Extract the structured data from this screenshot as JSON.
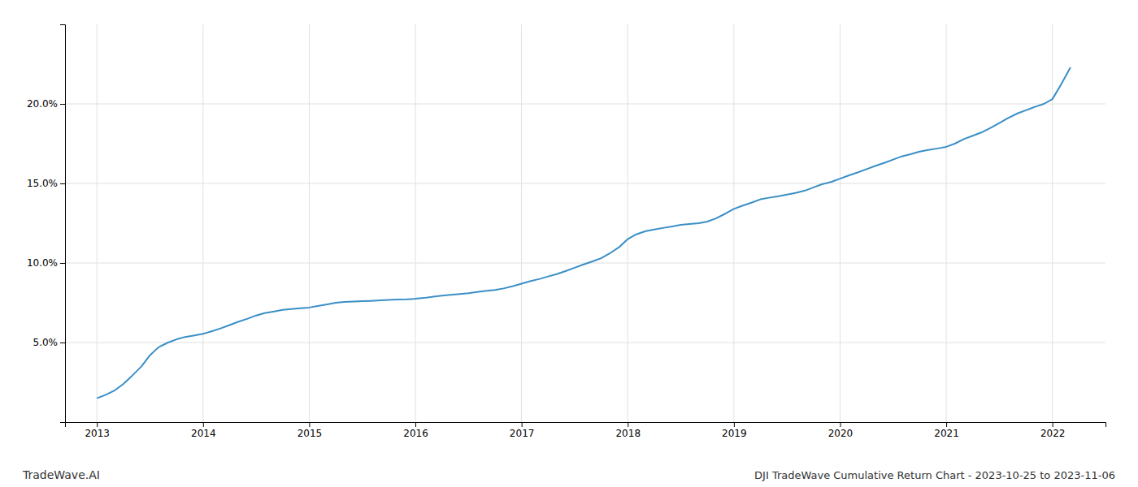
{
  "chart_data": {
    "type": "line",
    "title": "DJI TradeWave Cumulative Return Chart - 2023-10-25 to 2023-11-06",
    "annotations": [
      "TradeWave.AI"
    ],
    "color": "#3a8fc7",
    "x": [
      2013.0,
      2013.08,
      2013.17,
      2013.25,
      2013.33,
      2013.42,
      2013.5,
      2013.58,
      2013.67,
      2013.75,
      2013.83,
      2013.92,
      2014.0,
      2014.08,
      2014.17,
      2014.25,
      2014.33,
      2014.42,
      2014.5,
      2014.58,
      2014.67,
      2014.75,
      2014.83,
      2014.92,
      2015.0,
      2015.08,
      2015.17,
      2015.25,
      2015.33,
      2015.42,
      2015.5,
      2015.58,
      2015.67,
      2015.75,
      2015.83,
      2015.92,
      2016.0,
      2016.08,
      2016.17,
      2016.25,
      2016.33,
      2016.42,
      2016.5,
      2016.58,
      2016.67,
      2016.75,
      2016.83,
      2016.92,
      2017.0,
      2017.08,
      2017.17,
      2017.25,
      2017.33,
      2017.42,
      2017.5,
      2017.58,
      2017.67,
      2017.75,
      2017.83,
      2017.92,
      2018.0,
      2018.08,
      2018.17,
      2018.25,
      2018.33,
      2018.42,
      2018.5,
      2018.58,
      2018.67,
      2018.75,
      2018.83,
      2018.92,
      2019.0,
      2019.08,
      2019.17,
      2019.25,
      2019.33,
      2019.42,
      2019.5,
      2019.58,
      2019.67,
      2019.75,
      2019.83,
      2019.92,
      2020.0,
      2020.08,
      2020.17,
      2020.25,
      2020.33,
      2020.42,
      2020.5,
      2020.58,
      2020.67,
      2020.75,
      2020.83,
      2020.92,
      2021.0,
      2021.08,
      2021.17,
      2021.25,
      2021.33,
      2021.42,
      2021.5,
      2021.58,
      2021.67,
      2021.75,
      2021.83,
      2021.92,
      2022.0,
      2022.08,
      2022.17
    ],
    "values": [
      1.5,
      1.7,
      2.0,
      2.4,
      2.9,
      3.5,
      4.2,
      4.7,
      5.0,
      5.2,
      5.35,
      5.45,
      5.55,
      5.7,
      5.9,
      6.1,
      6.3,
      6.5,
      6.7,
      6.85,
      6.95,
      7.05,
      7.1,
      7.15,
      7.2,
      7.3,
      7.4,
      7.5,
      7.55,
      7.58,
      7.6,
      7.62,
      7.65,
      7.68,
      7.7,
      7.72,
      7.75,
      7.8,
      7.88,
      7.95,
      8.0,
      8.05,
      8.1,
      8.18,
      8.25,
      8.3,
      8.4,
      8.55,
      8.7,
      8.85,
      9.0,
      9.15,
      9.3,
      9.5,
      9.7,
      9.9,
      10.1,
      10.3,
      10.6,
      11.0,
      11.5,
      11.8,
      12.0,
      12.1,
      12.2,
      12.3,
      12.4,
      12.45,
      12.5,
      12.6,
      12.8,
      13.1,
      13.4,
      13.6,
      13.8,
      14.0,
      14.1,
      14.2,
      14.3,
      14.4,
      14.55,
      14.75,
      14.95,
      15.1,
      15.3,
      15.5,
      15.7,
      15.9,
      16.1,
      16.3,
      16.5,
      16.7,
      16.85,
      17.0,
      17.1,
      17.2,
      17.3,
      17.5,
      17.8,
      18.0,
      18.2,
      18.5,
      18.8,
      19.1,
      19.4,
      19.6,
      19.8,
      20.0,
      20.3,
      21.2,
      22.3
    ],
    "xlim": [
      2012.7,
      2022.5
    ],
    "ylim": [
      0,
      25
    ],
    "xticks": [
      2013,
      2014,
      2015,
      2016,
      2017,
      2018,
      2019,
      2020,
      2021,
      2022
    ],
    "yticks": [
      {
        "value": 5.0,
        "label": "5.0%"
      },
      {
        "value": 10.0,
        "label": "10.0%"
      },
      {
        "value": 15.0,
        "label": "15.0%"
      },
      {
        "value": 20.0,
        "label": "20.0%"
      }
    ],
    "grid": true
  }
}
